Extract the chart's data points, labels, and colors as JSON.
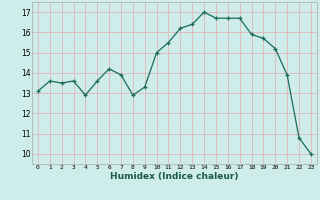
{
  "x": [
    0,
    1,
    2,
    3,
    4,
    5,
    6,
    7,
    8,
    9,
    10,
    11,
    12,
    13,
    14,
    15,
    16,
    17,
    18,
    19,
    20,
    21,
    22,
    23
  ],
  "y": [
    13.1,
    13.6,
    13.5,
    13.6,
    12.9,
    13.6,
    14.2,
    13.9,
    12.9,
    13.3,
    15.0,
    15.5,
    16.2,
    16.4,
    17.0,
    16.7,
    16.7,
    16.7,
    15.9,
    15.7,
    15.2,
    13.9,
    10.8,
    10.0
  ],
  "bg_color": "#cdecea",
  "grid_color": "#e0b8b8",
  "line_color": "#1a6b5a",
  "marker_color": "#1a6b5a",
  "xlabel": "Humidex (Indice chaleur)",
  "xlim": [
    -0.5,
    23.5
  ],
  "ylim": [
    9.5,
    17.5
  ],
  "yticks": [
    10,
    11,
    12,
    13,
    14,
    15,
    16,
    17
  ],
  "xticks": [
    0,
    1,
    2,
    3,
    4,
    5,
    6,
    7,
    8,
    9,
    10,
    11,
    12,
    13,
    14,
    15,
    16,
    17,
    18,
    19,
    20,
    21,
    22,
    23
  ]
}
